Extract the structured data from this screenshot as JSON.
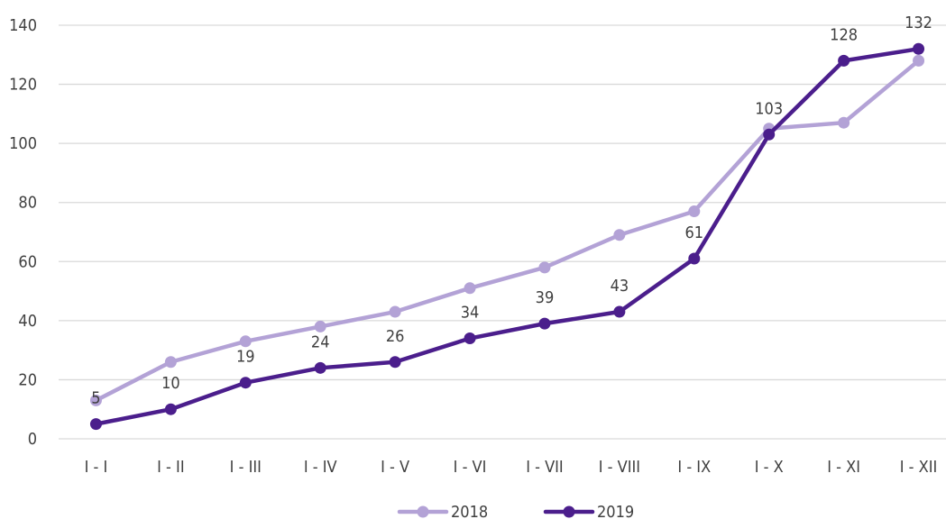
{
  "chart_data": {
    "type": "line",
    "categories": [
      "I - I",
      "I - II",
      "I - III",
      "I - IV",
      "I - V",
      "I - VI",
      "I - VII",
      "I - VIII",
      "I - IX",
      "I - X",
      "I - XI",
      "I - XII"
    ],
    "ylim": [
      0,
      140
    ],
    "yticks": [
      "0",
      "20",
      "40",
      "60",
      "80",
      "100",
      "120",
      "140"
    ],
    "grid": true,
    "legend_position": "bottom",
    "series": [
      {
        "name": "2018",
        "color": "#b3a2d6",
        "values": [
          13,
          26,
          33,
          38,
          43,
          51,
          58,
          69,
          77,
          105,
          107,
          128
        ],
        "labels": []
      },
      {
        "name": "2019",
        "color": "#4b1e8c",
        "values": [
          5,
          10,
          19,
          24,
          26,
          34,
          39,
          43,
          61,
          103,
          128,
          132
        ],
        "labels": [
          "5",
          "10",
          "19",
          "24",
          "26",
          "34",
          "39",
          "43",
          "61",
          "103",
          "128",
          "132"
        ]
      }
    ]
  }
}
